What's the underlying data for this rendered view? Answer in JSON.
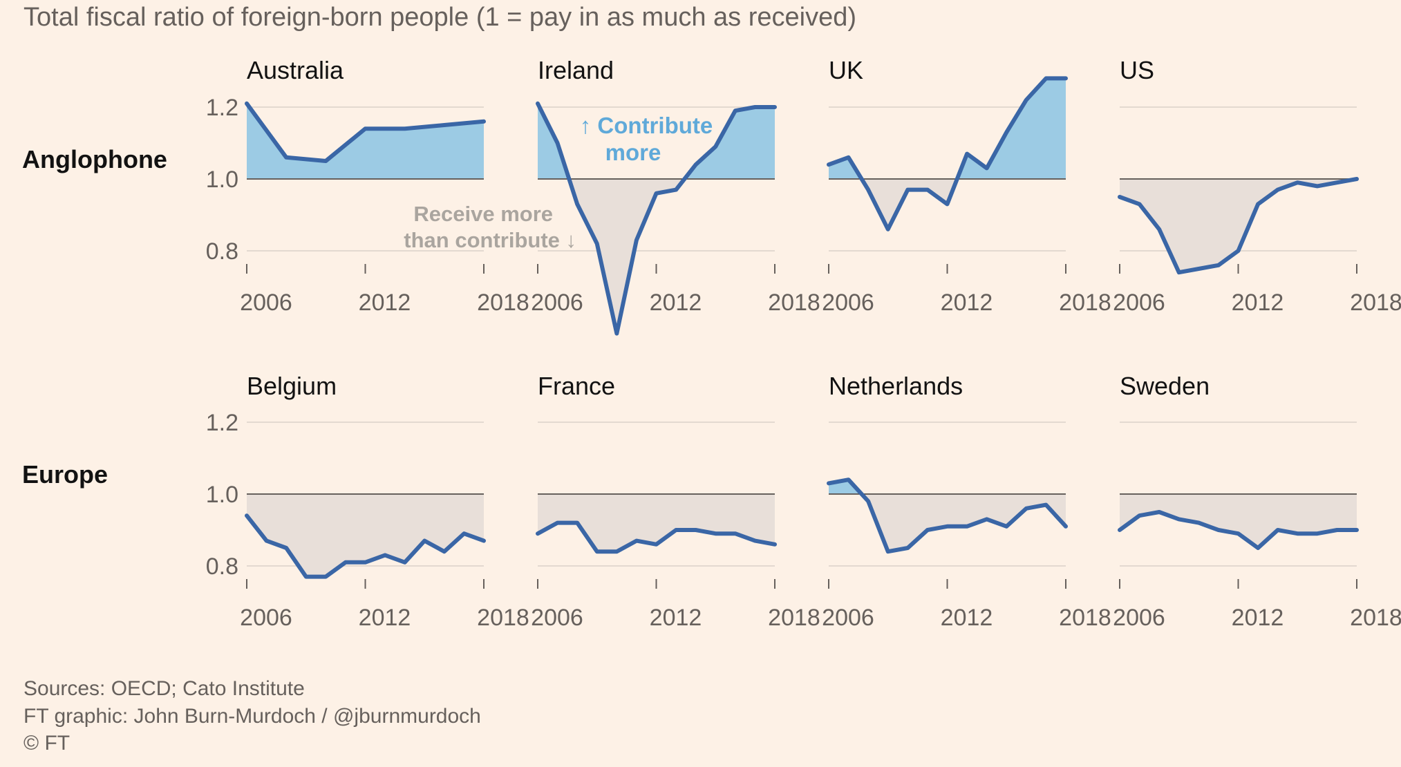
{
  "title": "Total fiscal ratio of foreign-born people (1 = pay in as much as received)",
  "row_labels": [
    "Anglophone",
    "Europe"
  ],
  "annotations": {
    "contribute": [
      "↑ Contribute",
      "more"
    ],
    "receive": [
      "Receive more",
      "than contribute ↓"
    ]
  },
  "source_lines": [
    "Sources: OECD; Cato Institute",
    "FT graphic: John Burn-Murdoch / @jburnmurdoch",
    "© FT"
  ],
  "colors": {
    "line": "#3a66a6",
    "positive_fill": "#9ccbe4",
    "negative_fill": "#e8dfd9",
    "baseline": "#66605c",
    "grid": "#e3d9d0"
  },
  "chart_data": [
    {
      "type": "area",
      "title": "Australia",
      "group": "Anglophone",
      "x": [
        2006,
        2008,
        2010,
        2012,
        2014,
        2016,
        2018
      ],
      "y": [
        1.21,
        1.06,
        1.05,
        1.14,
        1.14,
        1.15,
        1.16
      ],
      "ylim": [
        0.7,
        1.25
      ],
      "xticks": [
        "2006",
        "2012",
        "2018"
      ],
      "yticks": [
        "0.8",
        "1.0",
        "1.2"
      ],
      "baseline": 1.0
    },
    {
      "type": "area",
      "title": "Ireland",
      "group": "Anglophone",
      "x": [
        2006,
        2007,
        2008,
        2009,
        2010,
        2011,
        2012,
        2013,
        2014,
        2015,
        2016,
        2017,
        2018
      ],
      "y": [
        1.21,
        1.1,
        0.93,
        0.82,
        0.57,
        0.83,
        0.96,
        0.97,
        1.04,
        1.09,
        1.19,
        1.2,
        1.2
      ],
      "ylim": [
        0.7,
        1.25
      ],
      "xticks": [
        "2006",
        "2012",
        "2018"
      ],
      "yticks": [
        "0.8",
        "1.0",
        "1.2"
      ],
      "baseline": 1.0
    },
    {
      "type": "area",
      "title": "UK",
      "group": "Anglophone",
      "x": [
        2006,
        2007,
        2008,
        2009,
        2010,
        2011,
        2012,
        2013,
        2014,
        2015,
        2016,
        2017,
        2018
      ],
      "y": [
        1.04,
        1.06,
        0.97,
        0.86,
        0.97,
        0.97,
        0.93,
        1.07,
        1.03,
        1.13,
        1.22,
        1.28,
        1.28
      ],
      "ylim": [
        0.7,
        1.25
      ],
      "xticks": [
        "2006",
        "2012",
        "2018"
      ],
      "yticks": [
        "0.8",
        "1.0",
        "1.2"
      ],
      "baseline": 1.0
    },
    {
      "type": "area",
      "title": "US",
      "group": "Anglophone",
      "x": [
        2006,
        2007,
        2008,
        2009,
        2010,
        2011,
        2012,
        2013,
        2014,
        2015,
        2016,
        2017,
        2018
      ],
      "y": [
        0.95,
        0.93,
        0.86,
        0.74,
        0.75,
        0.76,
        0.8,
        0.93,
        0.97,
        0.99,
        0.98,
        0.99,
        1.0
      ],
      "ylim": [
        0.7,
        1.25
      ],
      "xticks": [
        "2006",
        "2012",
        "2018"
      ],
      "yticks": [
        "0.8",
        "1.0",
        "1.2"
      ],
      "baseline": 1.0
    },
    {
      "type": "area",
      "title": "Belgium",
      "group": "Europe",
      "x": [
        2006,
        2007,
        2008,
        2009,
        2010,
        2011,
        2012,
        2013,
        2014,
        2015,
        2016,
        2017,
        2018
      ],
      "y": [
        0.94,
        0.87,
        0.85,
        0.77,
        0.77,
        0.81,
        0.81,
        0.83,
        0.81,
        0.87,
        0.84,
        0.89,
        0.87
      ],
      "ylim": [
        0.7,
        1.25
      ],
      "xticks": [
        "2006",
        "2012",
        "2018"
      ],
      "yticks": [
        "0.8",
        "1.0",
        "1.2"
      ],
      "baseline": 1.0
    },
    {
      "type": "area",
      "title": "France",
      "group": "Europe",
      "x": [
        2006,
        2007,
        2008,
        2009,
        2010,
        2011,
        2012,
        2013,
        2014,
        2015,
        2016,
        2017,
        2018
      ],
      "y": [
        0.89,
        0.92,
        0.92,
        0.84,
        0.84,
        0.87,
        0.86,
        0.9,
        0.9,
        0.89,
        0.89,
        0.87,
        0.86
      ],
      "ylim": [
        0.7,
        1.25
      ],
      "xticks": [
        "2006",
        "2012",
        "2018"
      ],
      "yticks": [
        "0.8",
        "1.0",
        "1.2"
      ],
      "baseline": 1.0
    },
    {
      "type": "area",
      "title": "Netherlands",
      "group": "Europe",
      "x": [
        2006,
        2007,
        2008,
        2009,
        2010,
        2011,
        2012,
        2013,
        2014,
        2015,
        2016,
        2017,
        2018
      ],
      "y": [
        1.03,
        1.04,
        0.98,
        0.84,
        0.85,
        0.9,
        0.91,
        0.91,
        0.93,
        0.91,
        0.96,
        0.97,
        0.91
      ],
      "ylim": [
        0.7,
        1.25
      ],
      "xticks": [
        "2006",
        "2012",
        "2018"
      ],
      "yticks": [
        "0.8",
        "1.0",
        "1.2"
      ],
      "baseline": 1.0
    },
    {
      "type": "area",
      "title": "Sweden",
      "group": "Europe",
      "x": [
        2006,
        2007,
        2008,
        2009,
        2010,
        2011,
        2012,
        2013,
        2014,
        2015,
        2016,
        2017,
        2018
      ],
      "y": [
        0.9,
        0.94,
        0.95,
        0.93,
        0.92,
        0.9,
        0.89,
        0.85,
        0.9,
        0.89,
        0.89,
        0.9,
        0.9
      ],
      "ylim": [
        0.7,
        1.25
      ],
      "xticks": [
        "2006",
        "2012",
        "2018"
      ],
      "yticks": [
        "0.8",
        "1.0",
        "1.2"
      ],
      "baseline": 1.0
    }
  ]
}
